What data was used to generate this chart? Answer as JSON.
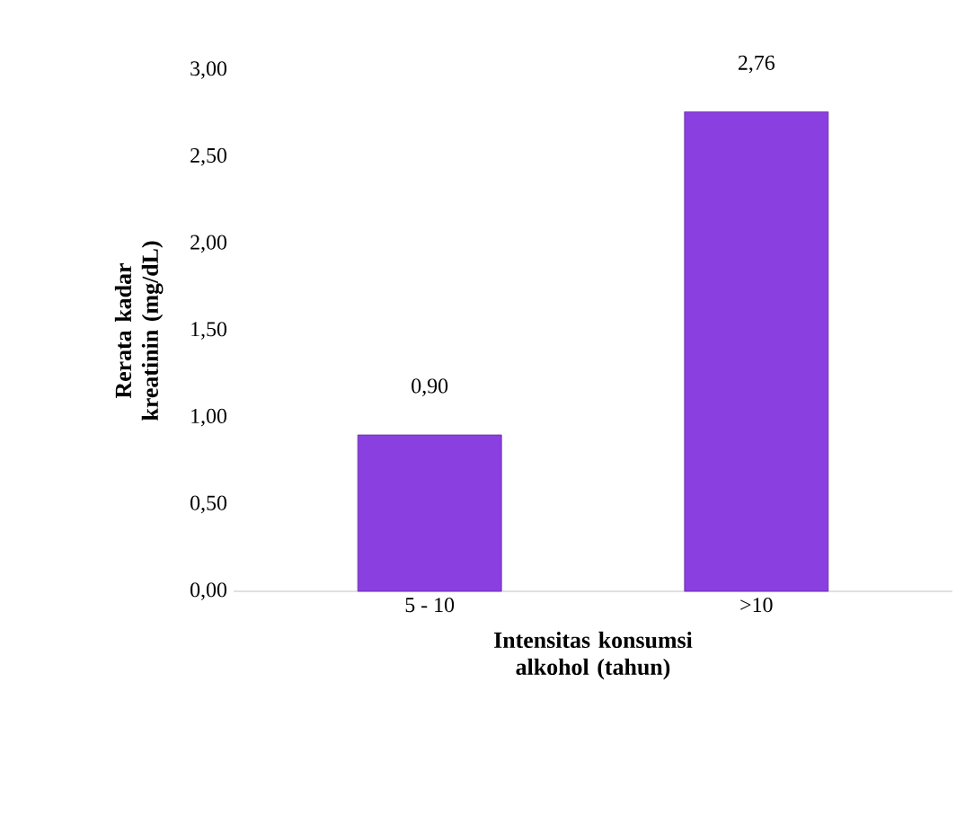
{
  "chart_data": {
    "type": "bar",
    "xlabel": "Intensitas konsumsi alkohol (tahun)",
    "ylabel": "Rerata kadar kreatinin (mg/dL)",
    "categories": [
      "5 - 10",
      ">10"
    ],
    "values": [
      0.9,
      2.76
    ],
    "value_labels": [
      "0,90",
      "2,76"
    ],
    "color": "#8a3fe0",
    "ylim": [
      0,
      3
    ],
    "yticks": [
      {
        "value": 0,
        "label": "0,00"
      },
      {
        "value": 0.5,
        "label": "0,50"
      },
      {
        "value": 1,
        "label": "1,00"
      },
      {
        "value": 1.5,
        "label": "1,50"
      },
      {
        "value": 2,
        "label": "2,00"
      },
      {
        "value": 2.5,
        "label": "2,50"
      },
      {
        "value": 3,
        "label": "3,00"
      }
    ]
  }
}
